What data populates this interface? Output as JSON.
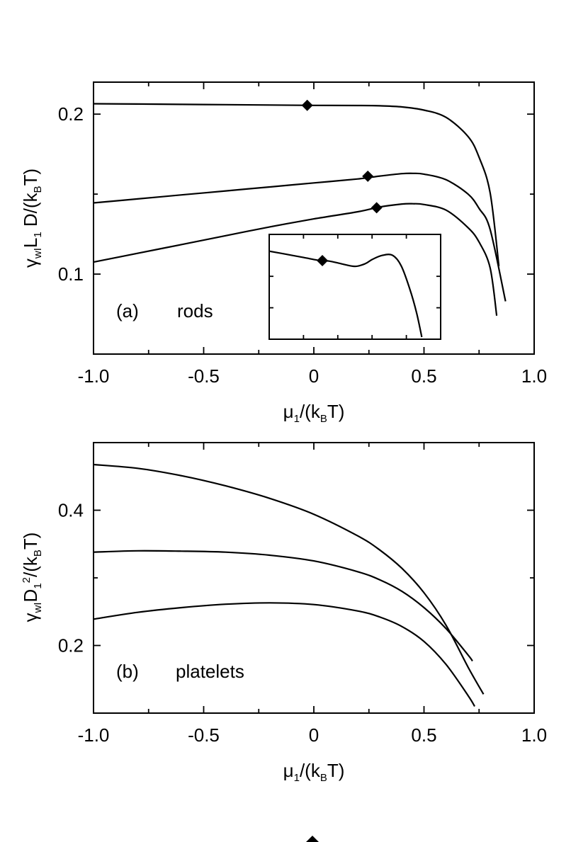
{
  "chart_data": [
    {
      "type": "line",
      "panel": "a",
      "annotation_label": "(a)",
      "annotation_text": "rods",
      "xlabel": {
        "main": "μ",
        "sub1": "1",
        "mid": "/(k",
        "sub2": "B",
        "end": "T)"
      },
      "ylabel": {
        "p1": "γ",
        "s1": "wI",
        "p2": "L",
        "s2": "1",
        "p3": " D/(k",
        "s3": "B",
        "p4": "T)"
      },
      "xlim": [
        -1.0,
        1.0
      ],
      "ylim": [
        0.05,
        0.22
      ],
      "x_ticks": [
        {
          "value": -1.0,
          "label": "-1.0"
        },
        {
          "value": -0.5,
          "label": "-0.5"
        },
        {
          "value": 0.0,
          "label": "0"
        },
        {
          "value": 0.5,
          "label": "0.5"
        },
        {
          "value": 1.0,
          "label": "1.0"
        }
      ],
      "y_ticks": [
        {
          "value": 0.1,
          "label": "0.1"
        },
        {
          "value": 0.2,
          "label": "0.2"
        }
      ],
      "series": [
        {
          "name": "upper",
          "x": [
            -1.0,
            -0.8,
            -0.6,
            -0.4,
            -0.2,
            0.0,
            0.2,
            0.3,
            0.4,
            0.5,
            0.6,
            0.7,
            0.75,
            0.8,
            0.84
          ],
          "y": [
            0.2065,
            0.2063,
            0.2061,
            0.2059,
            0.2057,
            0.2055,
            0.2054,
            0.2052,
            0.2045,
            0.2025,
            0.198,
            0.186,
            0.173,
            0.151,
            0.105
          ]
        },
        {
          "name": "middle",
          "x": [
            -1.0,
            -0.8,
            -0.6,
            -0.4,
            -0.2,
            0.0,
            0.2,
            0.3,
            0.4,
            0.45,
            0.5,
            0.6,
            0.7,
            0.75,
            0.8,
            0.87
          ],
          "y": [
            0.1445,
            0.147,
            0.1495,
            0.152,
            0.1545,
            0.157,
            0.1595,
            0.1613,
            0.1628,
            0.163,
            0.1625,
            0.159,
            0.15,
            0.141,
            0.128,
            0.083
          ]
        },
        {
          "name": "lower",
          "x": [
            -1.0,
            -0.8,
            -0.6,
            -0.4,
            -0.2,
            0.0,
            0.2,
            0.3,
            0.4,
            0.45,
            0.5,
            0.6,
            0.7,
            0.75,
            0.8,
            0.83
          ],
          "y": [
            0.1075,
            0.113,
            0.1185,
            0.124,
            0.1295,
            0.1345,
            0.139,
            0.142,
            0.1438,
            0.144,
            0.1435,
            0.14,
            0.129,
            0.12,
            0.104,
            0.074
          ]
        }
      ],
      "markers": [
        {
          "series": "upper",
          "x": -0.03,
          "y": 0.2055
        },
        {
          "series": "middle",
          "x": 0.245,
          "y": 0.1612
        },
        {
          "series": "lower",
          "x": 0.285,
          "y": 0.1415
        }
      ],
      "inset": {
        "xlim": [
          0,
          1
        ],
        "ylim": [
          0,
          1
        ],
        "x_tick_values": [
          0.2,
          0.4,
          0.6,
          0.8
        ],
        "y_tick_values": [
          0.3,
          0.6
        ],
        "series": [
          {
            "name": "inset-curve",
            "x": [
              0.0,
              0.1,
              0.2,
              0.28,
              0.35,
              0.42,
              0.5,
              0.56,
              0.6,
              0.66,
              0.72,
              0.77,
              0.82,
              0.86,
              0.89
            ],
            "y": [
              0.84,
              0.81,
              0.78,
              0.755,
              0.745,
              0.72,
              0.695,
              0.72,
              0.76,
              0.8,
              0.8,
              0.7,
              0.48,
              0.25,
              0.02
            ]
          }
        ],
        "marker": {
          "x": 0.31,
          "y": 0.75
        }
      }
    },
    {
      "type": "line",
      "panel": "b",
      "annotation_label": "(b)",
      "annotation_text": "platelets",
      "xlabel": {
        "main": "μ",
        "sub1": "1",
        "mid": "/(k",
        "sub2": "B",
        "end": "T)"
      },
      "ylabel": {
        "p1": "γ",
        "s1": "wI",
        "p2": "D",
        "s2": "1",
        "sup2": "2",
        "p3": "/(k",
        "s3": "B",
        "p4": "T)"
      },
      "xlim": [
        -1.0,
        1.0
      ],
      "ylim": [
        0.1,
        0.5
      ],
      "x_ticks": [
        {
          "value": -1.0,
          "label": "-1.0"
        },
        {
          "value": -0.5,
          "label": "-0.5"
        },
        {
          "value": 0.0,
          "label": "0"
        },
        {
          "value": 0.5,
          "label": "0.5"
        },
        {
          "value": 1.0,
          "label": "1.0"
        }
      ],
      "y_ticks": [
        {
          "value": 0.2,
          "label": "0.2"
        },
        {
          "value": 0.4,
          "label": "0.4"
        }
      ],
      "series": [
        {
          "name": "upper",
          "x": [
            -1.0,
            -0.8,
            -0.6,
            -0.4,
            -0.2,
            0.0,
            0.2,
            0.3,
            0.4,
            0.5,
            0.6,
            0.7,
            0.77
          ],
          "y": [
            0.4675,
            0.462,
            0.451,
            0.436,
            0.4175,
            0.394,
            0.362,
            0.341,
            0.314,
            0.278,
            0.23,
            0.168,
            0.128
          ]
        },
        {
          "name": "middle",
          "x": [
            -1.0,
            -0.8,
            -0.6,
            -0.4,
            -0.2,
            0.0,
            0.2,
            0.3,
            0.4,
            0.5,
            0.6,
            0.7,
            0.72
          ],
          "y": [
            0.338,
            0.34,
            0.3395,
            0.338,
            0.3335,
            0.325,
            0.309,
            0.297,
            0.28,
            0.256,
            0.225,
            0.186,
            0.177
          ]
        },
        {
          "name": "lower",
          "x": [
            -1.0,
            -0.8,
            -0.6,
            -0.4,
            -0.2,
            0.0,
            0.2,
            0.3,
            0.4,
            0.5,
            0.6,
            0.7,
            0.73
          ],
          "y": [
            0.239,
            0.249,
            0.256,
            0.261,
            0.263,
            0.2605,
            0.251,
            0.242,
            0.228,
            0.206,
            0.172,
            0.126,
            0.11
          ]
        }
      ]
    }
  ]
}
